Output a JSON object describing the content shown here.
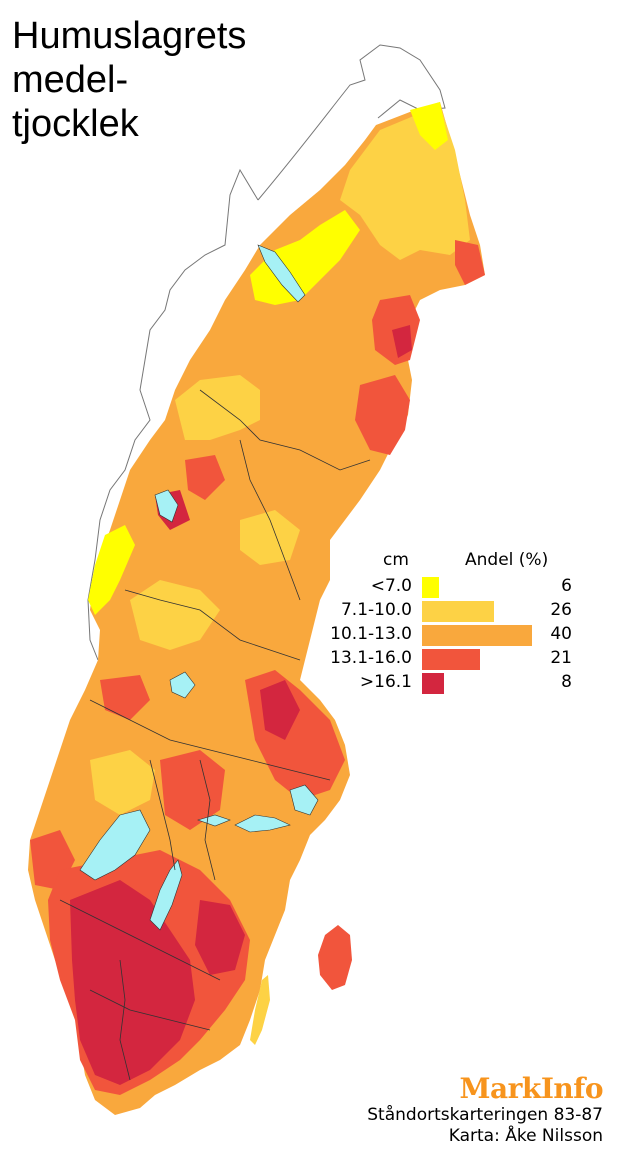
{
  "title": [
    "Humuslagrets",
    "medel-",
    "tjocklek"
  ],
  "legend": {
    "unit_header": "cm",
    "share_header": "Andel (%)",
    "classes": [
      {
        "label": "<7.0",
        "percent": 6,
        "color": "#ffff00"
      },
      {
        "label": "7.1-10.0",
        "percent": 26,
        "color": "#fdd245"
      },
      {
        "label": "10.1-13.0",
        "percent": 40,
        "color": "#f9a83d"
      },
      {
        "label": "13.1-16.0",
        "percent": 21,
        "color": "#f1553c"
      },
      {
        "label": ">16.1",
        "percent": 8,
        "color": "#d3263f"
      }
    ]
  },
  "brand": "MarkInfo",
  "credits": [
    "Ståndortskarteringen 83-87",
    "Karta: Åke Nilsson"
  ],
  "colors": {
    "lake": "#a6f1f5",
    "border": "#333333",
    "outline": "#777777"
  }
}
